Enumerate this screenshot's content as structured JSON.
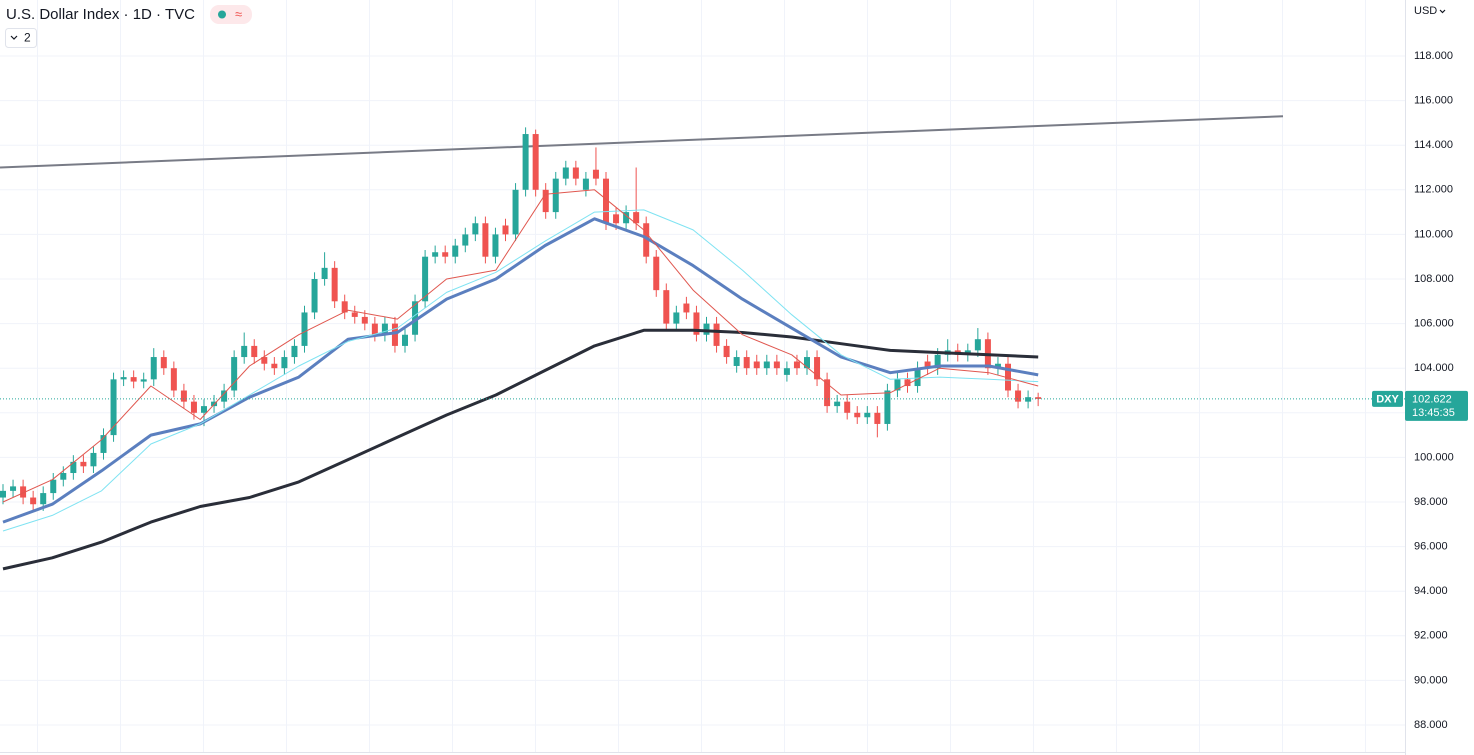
{
  "chart_data": {
    "type": "candlestick",
    "title": "U.S. Dollar Index · 1D · TVC",
    "indicator_count": "2",
    "currency": "USD",
    "symbol": "DXY",
    "countdown": "13:45:35",
    "up_color": "#26a69a",
    "down_color": "#ef5350",
    "ylim": [
      87,
      119
    ],
    "yticks": [
      {
        "value": 88,
        "label": "88.000"
      },
      {
        "value": 90,
        "label": "90.000"
      },
      {
        "value": 92,
        "label": "92.000"
      },
      {
        "value": 94,
        "label": "94.000"
      },
      {
        "value": 96,
        "label": "96.000"
      },
      {
        "value": 98,
        "label": "98.000"
      },
      {
        "value": 100,
        "label": "100.000"
      },
      {
        "value": 102,
        "label": "102.000"
      },
      {
        "value": 104,
        "label": "104.000"
      },
      {
        "value": 106,
        "label": "106.000"
      },
      {
        "value": 108,
        "label": "108.000"
      },
      {
        "value": 110,
        "label": "110.000"
      },
      {
        "value": 112,
        "label": "112.000"
      },
      {
        "value": 114,
        "label": "114.000"
      },
      {
        "value": 116,
        "label": "116.000"
      },
      {
        "value": 118,
        "label": "118.000"
      }
    ],
    "grid": true,
    "candles": {
      "open": [
        98.2,
        98.5,
        98.7,
        98.2,
        97.9,
        98.4,
        99.0,
        99.3,
        99.8,
        99.6,
        100.2,
        101.0,
        103.5,
        103.6,
        103.4,
        103.5,
        104.5,
        104.0,
        103.0,
        102.5,
        102.0,
        102.3,
        102.5,
        103.0,
        104.5,
        105.0,
        104.5,
        104.2,
        104.0,
        104.5,
        105.0,
        106.5,
        108.0,
        108.5,
        107.0,
        106.5,
        106.3,
        106.0,
        105.5,
        106.0,
        105.0,
        105.5,
        107.0,
        109.0,
        109.2,
        109.0,
        109.5,
        110.0,
        110.5,
        109.0,
        110.4,
        110.0,
        112.0,
        114.5,
        112.0,
        111.0,
        112.5,
        113.0,
        112.0,
        112.9,
        112.5,
        110.9,
        110.5,
        111.0,
        110.5,
        109.0,
        107.5,
        106.0,
        106.9,
        106.5,
        105.5,
        106.0,
        105.0,
        104.1,
        104.5,
        104.3,
        104.0,
        104.3,
        103.7,
        104.3,
        104.0,
        104.5,
        103.5,
        102.3,
        102.5,
        102.0,
        101.8,
        102.0,
        101.5,
        103.0,
        103.5,
        103.2,
        104.3,
        104.0,
        104.6,
        104.8,
        104.6,
        104.8,
        105.3,
        104.0,
        104.2,
        103.0,
        102.5,
        102.7
      ],
      "high": [
        98.8,
        99.0,
        99.0,
        98.5,
        98.7,
        99.3,
        99.6,
        100.1,
        100.1,
        100.5,
        101.3,
        103.8,
        103.9,
        103.9,
        103.8,
        104.9,
        104.8,
        104.3,
        103.3,
        102.8,
        102.6,
        102.8,
        103.3,
        104.8,
        105.6,
        105.3,
        104.8,
        104.5,
        104.8,
        105.3,
        106.8,
        108.3,
        109.2,
        108.8,
        107.3,
        106.8,
        106.6,
        106.3,
        106.3,
        106.3,
        105.8,
        107.3,
        109.3,
        109.5,
        109.5,
        109.8,
        110.3,
        110.8,
        110.8,
        110.3,
        110.7,
        112.3,
        114.8,
        114.7,
        112.3,
        112.8,
        113.3,
        113.3,
        112.8,
        113.9,
        112.8,
        111.2,
        111.3,
        113.0,
        110.8,
        109.3,
        107.8,
        106.8,
        107.2,
        106.8,
        106.3,
        106.3,
        105.3,
        104.8,
        104.8,
        104.6,
        104.6,
        104.6,
        104.3,
        104.6,
        104.8,
        104.8,
        103.8,
        102.8,
        102.8,
        102.3,
        102.3,
        102.3,
        103.3,
        103.8,
        103.8,
        104.3,
        104.6,
        104.9,
        105.3,
        105.1,
        105.1,
        105.8,
        105.6,
        104.5,
        104.5,
        103.3,
        103.0,
        102.9
      ],
      "low": [
        97.9,
        98.2,
        97.9,
        97.6,
        97.6,
        98.1,
        98.7,
        99.0,
        99.3,
        99.3,
        99.9,
        100.7,
        103.2,
        103.1,
        103.1,
        103.2,
        103.7,
        102.7,
        102.2,
        101.7,
        101.4,
        102.0,
        102.2,
        102.7,
        104.2,
        104.2,
        103.9,
        103.7,
        103.7,
        104.2,
        104.7,
        106.2,
        107.7,
        106.7,
        106.2,
        106.0,
        105.7,
        105.2,
        105.2,
        104.7,
        104.7,
        105.2,
        106.7,
        108.7,
        108.7,
        108.7,
        109.2,
        109.7,
        108.7,
        108.7,
        109.7,
        109.7,
        111.7,
        111.7,
        110.7,
        110.7,
        112.2,
        112.2,
        111.7,
        112.2,
        110.2,
        110.2,
        110.2,
        110.2,
        108.7,
        107.2,
        105.7,
        105.7,
        106.2,
        105.2,
        105.2,
        104.7,
        104.2,
        103.8,
        103.7,
        103.7,
        103.7,
        103.7,
        103.4,
        103.7,
        103.7,
        103.2,
        102.0,
        102.0,
        101.7,
        101.5,
        101.5,
        100.9,
        101.2,
        102.7,
        102.9,
        102.9,
        103.7,
        103.7,
        104.3,
        104.3,
        104.3,
        104.5,
        103.7,
        103.7,
        102.7,
        102.2,
        102.2,
        102.3
      ],
      "close": [
        98.5,
        98.7,
        98.2,
        97.9,
        98.4,
        99.0,
        99.3,
        99.8,
        99.6,
        100.2,
        101.0,
        103.5,
        103.6,
        103.4,
        103.5,
        104.5,
        104.0,
        103.0,
        102.5,
        102.0,
        102.3,
        102.5,
        103.0,
        104.5,
        105.0,
        104.5,
        104.2,
        104.0,
        104.5,
        105.0,
        106.5,
        108.0,
        108.5,
        107.0,
        106.5,
        106.3,
        106.0,
        105.5,
        106.0,
        105.0,
        105.5,
        107.0,
        109.0,
        109.2,
        109.0,
        109.5,
        110.0,
        110.5,
        109.0,
        110.0,
        110.0,
        112.0,
        114.5,
        112.0,
        111.0,
        112.5,
        113.0,
        112.5,
        112.5,
        112.5,
        110.5,
        110.5,
        111.0,
        110.5,
        109.0,
        107.5,
        106.0,
        106.5,
        106.5,
        105.5,
        106.0,
        105.0,
        104.5,
        104.5,
        104.0,
        104.0,
        104.3,
        104.0,
        104.0,
        104.0,
        104.5,
        103.5,
        102.3,
        102.5,
        102.0,
        101.8,
        102.0,
        101.5,
        103.0,
        103.5,
        103.2,
        104.0,
        104.0,
        104.6,
        104.8,
        104.6,
        104.8,
        105.3,
        104.0,
        104.2,
        103.0,
        102.5,
        102.7,
        102.622
      ]
    },
    "moving_averages": [
      {
        "color": "#2a2e39",
        "width": 3,
        "values": [
          95.0,
          95.5,
          96.2,
          97.1,
          97.8,
          98.2,
          98.9,
          99.9,
          100.9,
          101.9,
          102.8,
          103.9,
          105.0,
          105.7,
          105.7,
          105.6,
          105.4,
          105.1,
          104.8,
          104.7,
          104.6,
          104.5
        ]
      },
      {
        "color": "#5b7fbf",
        "width": 3,
        "values": [
          97.1,
          97.9,
          99.4,
          101.0,
          101.5,
          102.7,
          103.6,
          105.3,
          105.6,
          107.1,
          108.0,
          109.5,
          110.7,
          109.9,
          108.6,
          107.1,
          105.8,
          104.5,
          103.8,
          104.1,
          104.1,
          103.7
        ]
      },
      {
        "color": "#7fe3f2",
        "width": 1,
        "values": [
          96.7,
          97.4,
          98.5,
          100.6,
          101.5,
          102.8,
          104.1,
          105.2,
          105.8,
          107.4,
          108.3,
          109.7,
          111.0,
          111.1,
          110.2,
          108.4,
          106.4,
          104.6,
          103.5,
          103.6,
          103.5,
          103.4
        ]
      },
      {
        "color": "#e0574f",
        "width": 1,
        "values": [
          98.0,
          99.0,
          100.8,
          103.2,
          101.7,
          104.1,
          105.5,
          106.6,
          106.2,
          108.0,
          108.4,
          111.8,
          112.0,
          110.2,
          107.5,
          105.5,
          104.6,
          102.8,
          102.9,
          104.0,
          103.8,
          103.2
        ]
      }
    ],
    "trendline": {
      "color": "#787b86",
      "values": [
        113.0,
        115.3
      ]
    }
  }
}
